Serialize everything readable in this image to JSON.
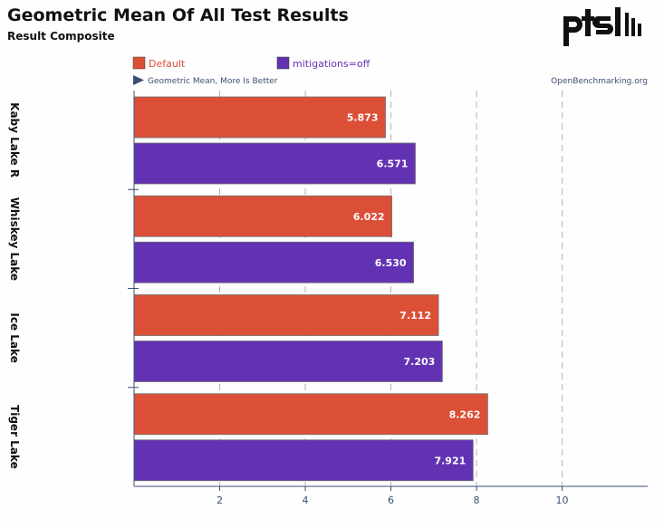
{
  "title": "Geometric Mean Of All Test Results",
  "subtitle": "Result Composite",
  "logo_text": "ptsh",
  "direction_note": "Geometric Mean, More Is Better",
  "source": "OpenBenchmarking.org",
  "colors": {
    "background": "#fefefe",
    "default": "#dc4f37",
    "mitigations": "#6232b3",
    "axis": "#3c4f72",
    "text": "#111111",
    "grid": "#b4b4b4"
  },
  "chart_data": {
    "type": "bar",
    "orientation": "horizontal",
    "categories": [
      "Kaby Lake R",
      "Whiskey Lake",
      "Ice Lake",
      "Tiger Lake"
    ],
    "series": [
      {
        "name": "Default",
        "values": [
          5.873,
          6.022,
          7.112,
          8.262
        ],
        "labels": [
          "5.873",
          "6.022",
          "7.112",
          "8.262"
        ]
      },
      {
        "name": "mitigations=off",
        "values": [
          6.571,
          6.53,
          7.203,
          7.921
        ],
        "labels": [
          "6.571",
          "6.530",
          "7.203",
          "7.921"
        ]
      }
    ],
    "x_ticks": [
      2,
      4,
      6,
      8,
      10
    ],
    "xlim": [
      0,
      12
    ],
    "grid": true,
    "legend_position": "top"
  }
}
